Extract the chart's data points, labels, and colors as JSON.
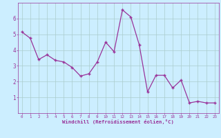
{
  "x": [
    0,
    1,
    2,
    3,
    4,
    5,
    6,
    7,
    8,
    9,
    10,
    11,
    12,
    13,
    14,
    15,
    16,
    17,
    18,
    19,
    20,
    21,
    22,
    23
  ],
  "y": [
    5.15,
    4.75,
    3.4,
    3.7,
    3.35,
    3.25,
    2.9,
    2.35,
    2.5,
    3.25,
    4.5,
    3.9,
    6.55,
    6.1,
    4.35,
    1.35,
    2.4,
    2.4,
    1.6,
    2.1,
    0.65,
    0.75,
    0.65,
    0.65
  ],
  "line_color": "#993399",
  "marker": "+",
  "bg_color": "#cceeff",
  "grid_color": "#aacccc",
  "xlabel": "Windchill (Refroidissement éolien,°C)",
  "xlabel_color": "#993399",
  "tick_color": "#993399",
  "ylabel_ticks": [
    1,
    2,
    3,
    4,
    5,
    6
  ],
  "xlim": [
    -0.5,
    23.5
  ],
  "ylim": [
    0.0,
    7.0
  ]
}
